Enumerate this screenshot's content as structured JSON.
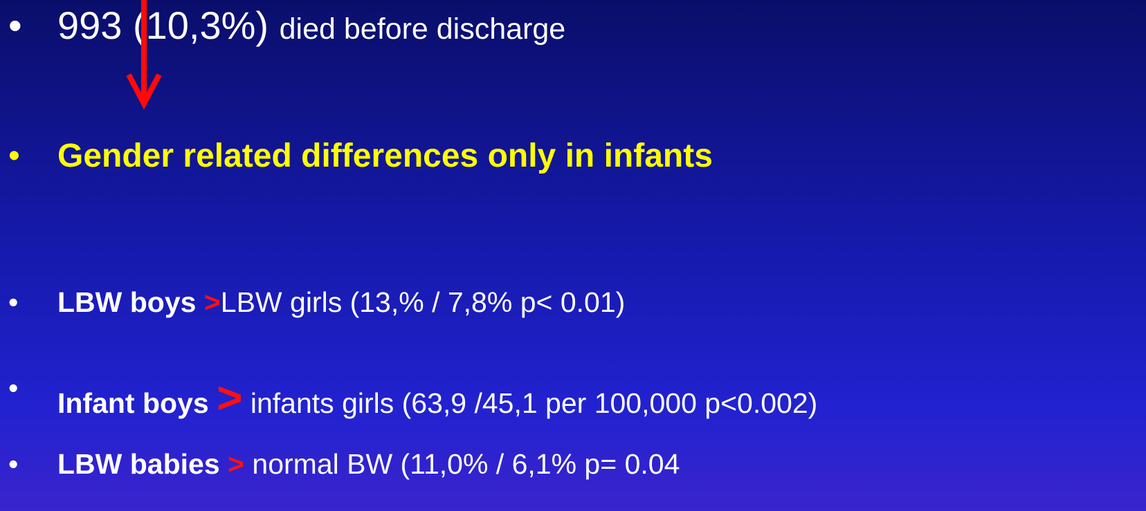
{
  "bullets": [
    {
      "parts": [
        "993 (10,3%)",
        "died before discharge"
      ]
    },
    {
      "parts": [
        "Gender  related  differences  only  in infants"
      ]
    },
    {
      "parts": [
        "LBW boys ",
        ">",
        "LBW girls  (13,% / 7,8%  p< 0.01)"
      ]
    },
    {
      "parts": [
        "Infant boys",
        ">",
        "infants girls (63,9 /45,1 per 100,000 p<0.002)"
      ]
    },
    {
      "parts": [
        "LBW babies",
        ">",
        "normal BW (11,0% / 6,1% p= 0.04"
      ]
    }
  ]
}
